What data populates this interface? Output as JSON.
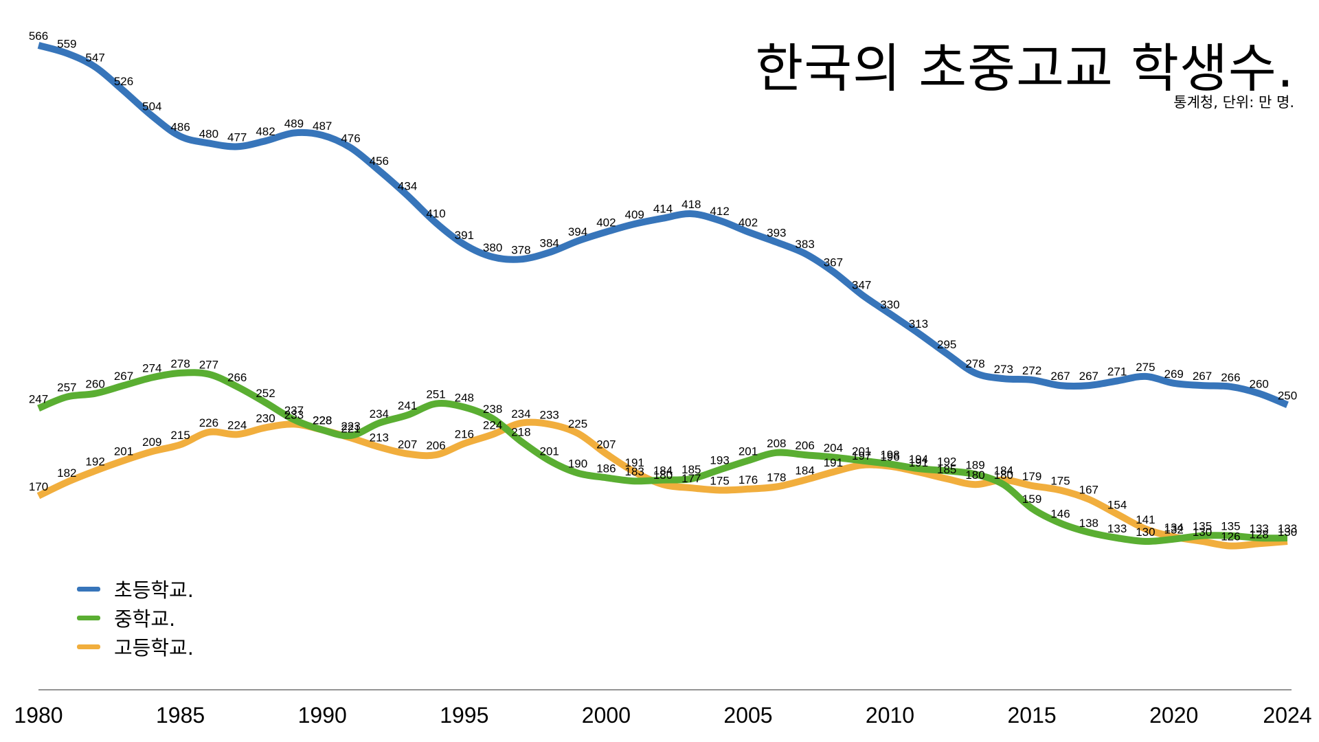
{
  "chart_data": {
    "type": "line",
    "title": "한국의 초중고교 학생수.",
    "subtitle": "통계청, 단위: 만 명.",
    "xlabel": "",
    "ylabel": "",
    "xlim": [
      1980,
      2024
    ],
    "ylim": [
      100,
      580
    ],
    "grid": false,
    "legend_position": "bottom-left",
    "x": [
      1980,
      1981,
      1982,
      1983,
      1984,
      1985,
      1986,
      1987,
      1988,
      1989,
      1990,
      1991,
      1992,
      1993,
      1994,
      1995,
      1996,
      1997,
      1998,
      1999,
      2000,
      2001,
      2002,
      2003,
      2004,
      2005,
      2006,
      2007,
      2008,
      2009,
      2010,
      2011,
      2012,
      2013,
      2014,
      2015,
      2016,
      2017,
      2018,
      2019,
      2020,
      2021,
      2022,
      2023,
      2024
    ],
    "x_ticks": [
      "1980",
      "1985",
      "1990",
      "1995",
      "2000",
      "2005",
      "2010",
      "2015",
      "2020",
      "2024"
    ],
    "series": [
      {
        "name": "초등학교.",
        "color": "#3775ba",
        "values": [
          566,
          559,
          547,
          526,
          504,
          486,
          480,
          477,
          482,
          489,
          487,
          476,
          456,
          434,
          410,
          391,
          380,
          378,
          384,
          394,
          402,
          409,
          414,
          418,
          412,
          402,
          393,
          383,
          367,
          347,
          330,
          313,
          295,
          278,
          273,
          272,
          267,
          267,
          271,
          275,
          269,
          267,
          266,
          260,
          250
        ]
      },
      {
        "name": "중학교.",
        "color": "#5aae32",
        "values": [
          247,
          257,
          260,
          267,
          274,
          278,
          277,
          266,
          252,
          237,
          228,
          223,
          234,
          241,
          251,
          248,
          238,
          218,
          201,
          190,
          186,
          183,
          184,
          185,
          193,
          201,
          208,
          206,
          204,
          201,
          198,
          194,
          192,
          189,
          180,
          159,
          146,
          138,
          133,
          130,
          132,
          135,
          135,
          133,
          133
        ]
      },
      {
        "name": "고등학교.",
        "color": "#f1ae3d",
        "values": [
          170,
          182,
          192,
          201,
          209,
          215,
          226,
          224,
          230,
          233,
          228,
          221,
          213,
          207,
          206,
          216,
          224,
          234,
          233,
          225,
          207,
          191,
          180,
          177,
          175,
          176,
          178,
          184,
          191,
          197,
          196,
          191,
          185,
          180,
          184,
          179,
          175,
          167,
          154,
          141,
          134,
          130,
          126,
          128,
          130
        ]
      }
    ]
  }
}
